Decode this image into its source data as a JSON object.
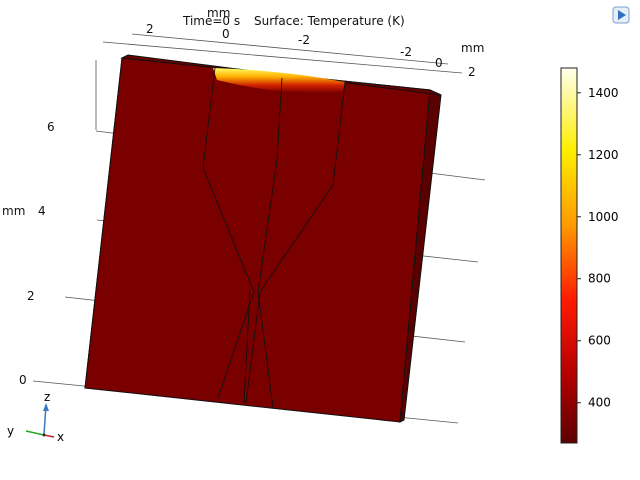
{
  "header": {
    "time_label": "Time=0 s",
    "surface_label": "Surface: Temperature (K)",
    "top_axis_unit": "mm"
  },
  "axes": {
    "unit_left": "mm",
    "unit_right": "mm",
    "top_ticks": [
      "2",
      "0",
      "-2"
    ],
    "right_ticks": [
      "-2",
      "0",
      "2"
    ],
    "z_ticks": [
      "6",
      "4",
      "2",
      "0"
    ]
  },
  "triad": {
    "z": "z",
    "y": "y",
    "x": "x"
  },
  "colorbar": {
    "ticks": [
      "1400",
      "1200",
      "1000",
      "800",
      "600",
      "400"
    ],
    "min": 270,
    "max": 1480,
    "tick_values": [
      1400,
      1200,
      1000,
      800,
      600,
      400
    ]
  },
  "colors": {
    "solid": "#7a0000",
    "solid_dark": "#6a0000",
    "side": "#5a0000",
    "hot": "#ffff66"
  },
  "icons": {
    "app_icon": "comsol-play-icon"
  }
}
